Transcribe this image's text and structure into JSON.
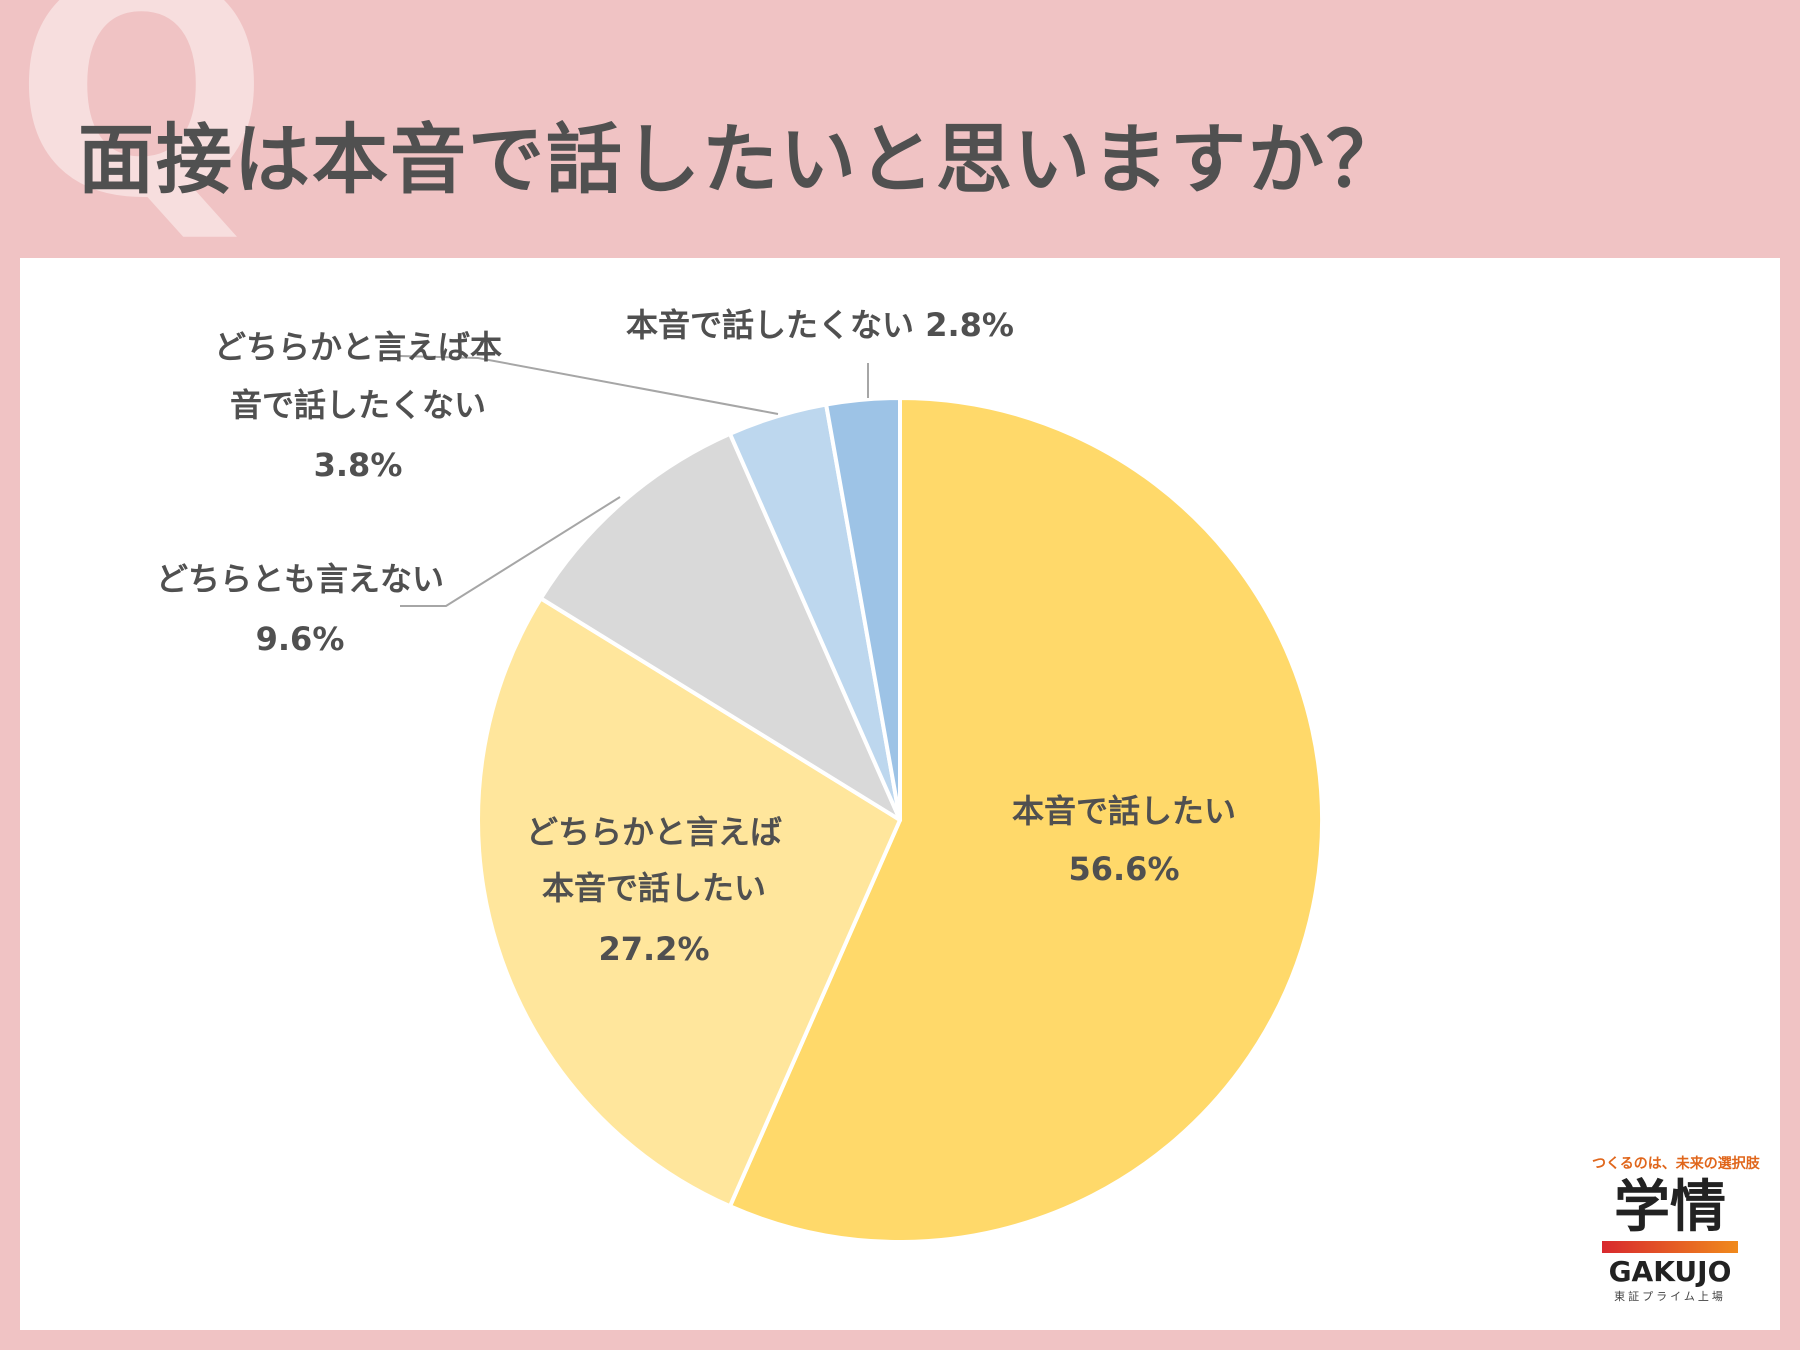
{
  "title": "面接は本音で話したいと思いますか？",
  "background_letter": "Q",
  "colors": {
    "background": "#f0c3c4",
    "panel": "#ffffff",
    "text": "#505050"
  },
  "chart_data": {
    "type": "pie",
    "title": "",
    "slices": [
      {
        "label": "本音で話したい",
        "value": 56.6,
        "value_label": "56.6%",
        "color": "#ffd96a"
      },
      {
        "label": "どちらかと言えば本音で話したい",
        "value": 27.2,
        "value_label": "27.2%",
        "color": "#ffe69c"
      },
      {
        "label": "どちらとも言えない",
        "value": 9.6,
        "value_label": "9.6%",
        "color": "#d9d9d9"
      },
      {
        "label": "どちらかと言えば本音で話したくない",
        "value": 3.8,
        "value_label": "3.8%",
        "color": "#bdd7ee"
      },
      {
        "label": "本音で話したくない",
        "value": 2.8,
        "value_label": "2.8%",
        "color": "#9dc3e6"
      }
    ],
    "start": "12 o'clock",
    "direction": "clockwise"
  },
  "label_lines": {
    "slice0": [
      "本音で話したい",
      "56.6%"
    ],
    "slice1": [
      "どちらかと言えば",
      "本音で話したい",
      "27.2%"
    ],
    "slice2": [
      "どちらとも言えない",
      "9.6%"
    ],
    "slice3": [
      "どちらかと言えば本",
      "音で話したくない",
      "3.8%"
    ],
    "slice4": [
      "本音で話したくない 2.8%"
    ]
  },
  "logo": {
    "tagline": "つくるのは、未来の選択肢",
    "kanji": "学情",
    "english": "GAKUJO",
    "sub": "東証プライム上場"
  }
}
